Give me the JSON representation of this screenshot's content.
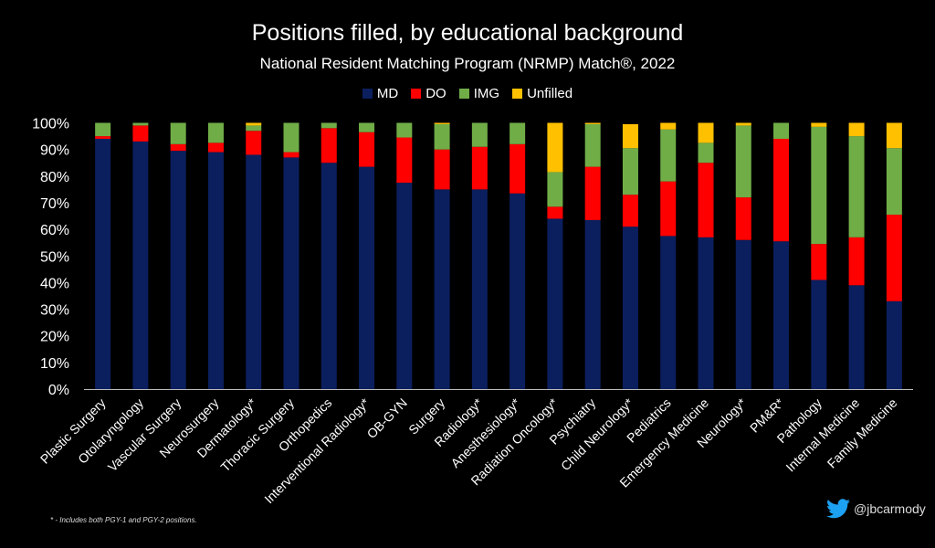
{
  "chart_data": {
    "type": "bar",
    "stacked": true,
    "title": "Positions filled, by educational background",
    "subtitle": "National Resident Matching Program (NRMP) Match®, 2022",
    "xlabel": "",
    "ylabel": "",
    "ylim": [
      0,
      100
    ],
    "yticks": [
      "0%",
      "10%",
      "20%",
      "30%",
      "40%",
      "50%",
      "60%",
      "70%",
      "80%",
      "90%",
      "100%"
    ],
    "legend_position": "top-center",
    "categories": [
      "Plastic Surgery",
      "Otolaryngology",
      "Vascular Surgery",
      "Neurosurgery",
      "Dermatology*",
      "Thoracic Surgery",
      "Orthopedics",
      "Interventional Radiology*",
      "OB-GYN",
      "Surgery",
      "Radiology*",
      "Anesthesiology*",
      "Radiation Oncology*",
      "Psychiatry",
      "Child Neurology*",
      "Pediatrics",
      "Emergency Medicine",
      "Neurology*",
      "PM&R*",
      "Pathology",
      "Internal Medicine",
      "Family Medicine"
    ],
    "series": [
      {
        "name": "MD",
        "color": "#0b1f5e",
        "values": [
          94,
          93,
          89.5,
          89,
          88,
          87,
          85,
          83.5,
          77.5,
          75,
          75,
          73.5,
          64,
          63.5,
          61,
          57.5,
          57,
          56,
          55.5,
          41,
          39,
          33
        ]
      },
      {
        "name": "DO",
        "color": "#ff0000",
        "values": [
          1,
          6,
          2.5,
          3.5,
          9,
          2,
          13,
          13,
          17,
          15,
          16,
          18.5,
          4.5,
          20,
          12,
          20.5,
          28,
          16,
          38.5,
          13.5,
          18,
          32.5
        ]
      },
      {
        "name": "IMG",
        "color": "#70ad47",
        "values": [
          5,
          1,
          8,
          7.5,
          2,
          11,
          2,
          3.5,
          5.5,
          9.5,
          9,
          8,
          13,
          16,
          17.5,
          19.5,
          7.5,
          27,
          6,
          44,
          38,
          25
        ]
      },
      {
        "name": "Unfilled",
        "color": "#ffc000",
        "values": [
          0,
          0,
          0,
          0,
          1,
          0,
          0,
          0,
          0,
          0.5,
          0,
          0,
          18.5,
          0.5,
          9,
          2.5,
          7.5,
          1,
          0,
          1.5,
          5,
          9.5
        ]
      }
    ]
  },
  "footnote": "* - Includes both PGY-1 and PGY-2 positions.",
  "handle": "@jbcarmody"
}
